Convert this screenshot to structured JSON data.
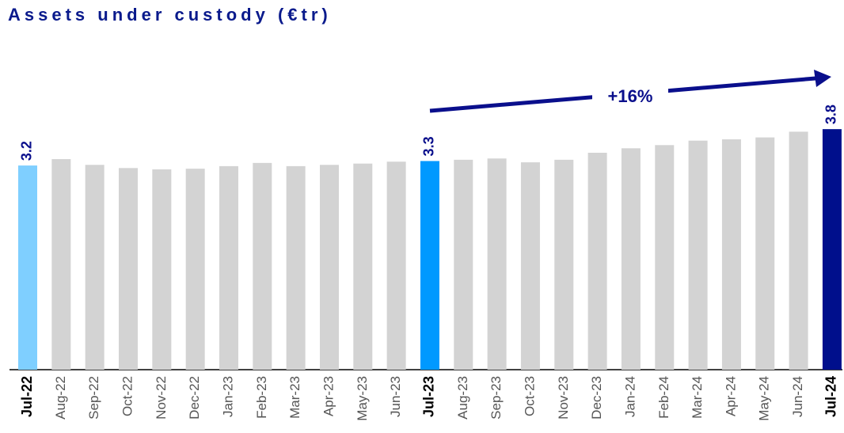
{
  "chart_data": {
    "type": "bar",
    "title": "Assets under custody (€tr)",
    "categories": [
      "Jul-22",
      "Aug-22",
      "Sep-22",
      "Oct-22",
      "Nov-22",
      "Dec-22",
      "Jan-23",
      "Feb-23",
      "Mar-23",
      "Apr-23",
      "May-23",
      "Jun-23",
      "Jul-23",
      "Aug-23",
      "Sep-23",
      "Oct-23",
      "Nov-23",
      "Dec-23",
      "Jan-24",
      "Feb-24",
      "Mar-24",
      "Apr-24",
      "May-24",
      "Jun-24",
      "Jul-24"
    ],
    "values": [
      3.2,
      3.3,
      3.21,
      3.16,
      3.14,
      3.15,
      3.19,
      3.24,
      3.19,
      3.21,
      3.23,
      3.26,
      3.27,
      3.29,
      3.31,
      3.25,
      3.29,
      3.4,
      3.47,
      3.52,
      3.59,
      3.61,
      3.64,
      3.73,
      3.77
    ],
    "value_labels": [
      "3.2",
      null,
      null,
      null,
      null,
      null,
      null,
      null,
      null,
      null,
      null,
      null,
      "3.3",
      null,
      null,
      null,
      null,
      null,
      null,
      null,
      null,
      null,
      null,
      null,
      "3.8"
    ],
    "colors": [
      "#7fcfff",
      "#d3d3d3",
      "#d3d3d3",
      "#d3d3d3",
      "#d3d3d3",
      "#d3d3d3",
      "#d3d3d3",
      "#d3d3d3",
      "#d3d3d3",
      "#d3d3d3",
      "#d3d3d3",
      "#d3d3d3",
      "#0099ff",
      "#d3d3d3",
      "#d3d3d3",
      "#d3d3d3",
      "#d3d3d3",
      "#d3d3d3",
      "#d3d3d3",
      "#d3d3d3",
      "#d3d3d3",
      "#d3d3d3",
      "#d3d3d3",
      "#d3d3d3",
      "#000f8c"
    ],
    "ylim": [
      0,
      4
    ],
    "annotation": "+16%"
  }
}
